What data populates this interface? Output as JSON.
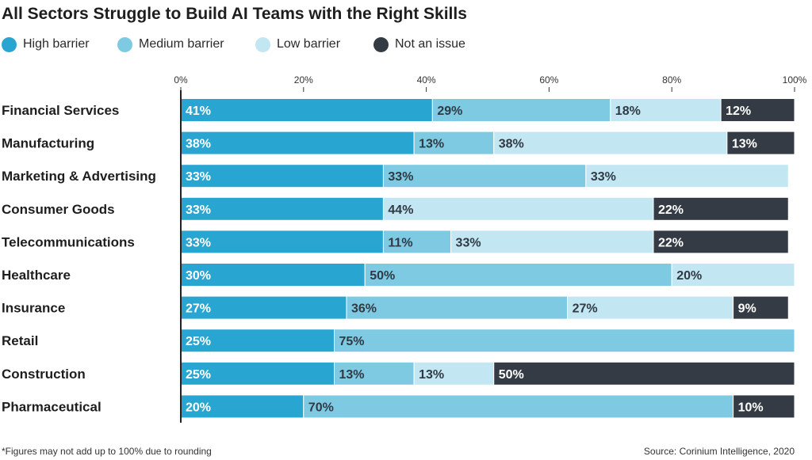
{
  "chart_data": {
    "type": "bar",
    "orientation": "horizontal",
    "stacked": true,
    "title": "All Sectors Struggle to Build AI Teams with the Right Skills",
    "categories": [
      "Financial Services",
      "Manufacturing",
      "Marketing & Advertising",
      "Consumer Goods",
      "Telecommunications",
      "Healthcare",
      "Insurance",
      "Retail",
      "Construction",
      "Pharmaceutical"
    ],
    "series": [
      {
        "name": "High barrier",
        "color": "#29a5d1",
        "label_color": "#ffffff",
        "values": [
          41,
          38,
          33,
          33,
          33,
          30,
          27,
          25,
          25,
          20
        ]
      },
      {
        "name": "Medium barrier",
        "color": "#7ecae3",
        "label_color": "#2f3a44",
        "values": [
          29,
          13,
          33,
          0,
          11,
          50,
          36,
          75,
          13,
          70
        ]
      },
      {
        "name": "Low barrier",
        "color": "#c3e6f3",
        "label_color": "#2f3a44",
        "values": [
          18,
          38,
          33,
          44,
          33,
          20,
          27,
          0,
          13,
          0
        ]
      },
      {
        "name": "Not an issue",
        "color": "#343b44",
        "label_color": "#ffffff",
        "values": [
          12,
          13,
          0,
          22,
          22,
          0,
          9,
          0,
          50,
          10
        ]
      }
    ],
    "xlim": [
      0,
      100
    ],
    "x_ticks": [
      "0%",
      "20%",
      "40%",
      "60%",
      "80%",
      "100%"
    ],
    "legend_position": "top-left",
    "grid": false
  },
  "footnote": "*Figures may not add up to 100% due to rounding",
  "source": "Source: Corinium Intelligence, 2020"
}
